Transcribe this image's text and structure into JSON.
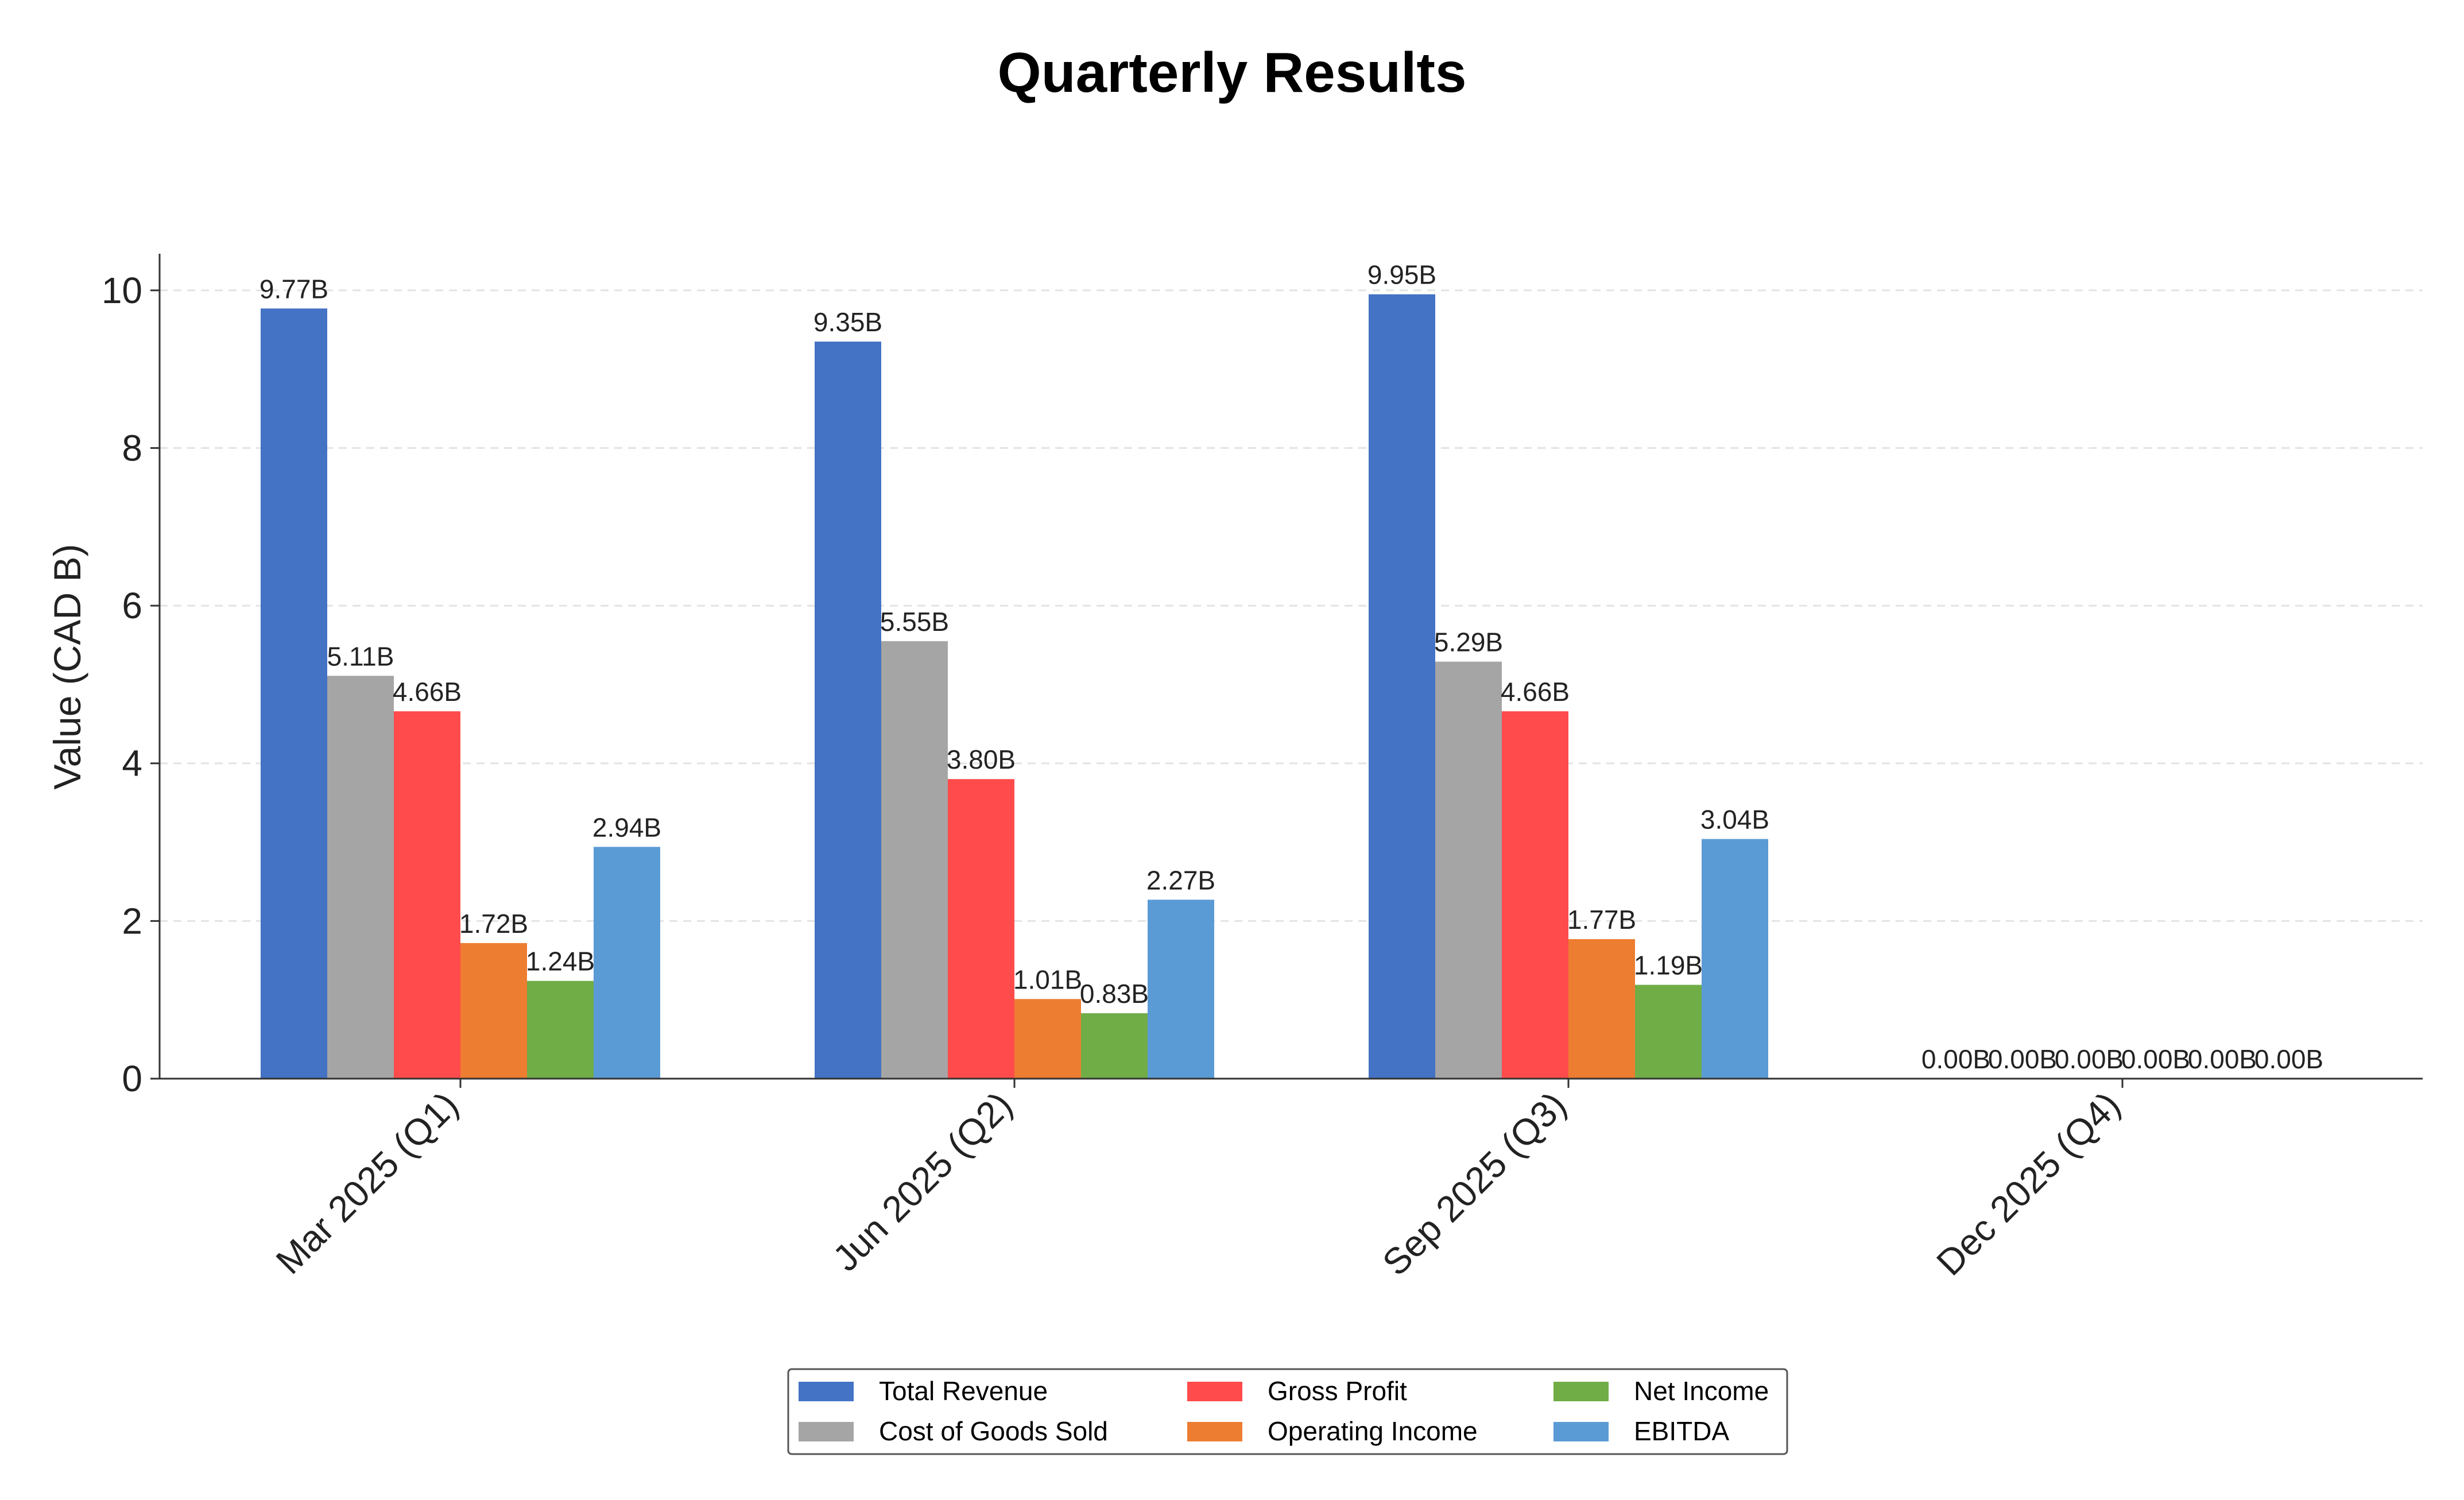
{
  "chart_data": {
    "type": "bar",
    "title": "Quarterly Results",
    "xlabel": "",
    "ylabel": "Value (CAD B)",
    "ylim": [
      0,
      10.45
    ],
    "yticks": [
      0,
      2,
      4,
      6,
      8,
      10
    ],
    "grid": "y-dashed",
    "legend_placement": "bottom-center",
    "value_suffix": "B",
    "categories": [
      "Mar 2025 (Q1)",
      "Jun 2025 (Q2)",
      "Sep 2025 (Q3)",
      "Dec 2025 (Q4)"
    ],
    "series": [
      {
        "name": "Total Revenue",
        "color": "#4472C4",
        "values": [
          9.77,
          9.35,
          9.95,
          0.0
        ]
      },
      {
        "name": "Cost of Goods Sold",
        "color": "#A5A5A5",
        "values": [
          5.11,
          5.55,
          5.29,
          0.0
        ]
      },
      {
        "name": "Gross Profit",
        "color": "#FF4B4B",
        "values": [
          4.66,
          3.8,
          4.66,
          0.0
        ]
      },
      {
        "name": "Operating Income",
        "color": "#ED7D31",
        "values": [
          1.72,
          1.01,
          1.77,
          0.0
        ]
      },
      {
        "name": "Net Income",
        "color": "#70AD47",
        "values": [
          1.24,
          0.83,
          1.19,
          0.0
        ]
      },
      {
        "name": "EBITDA",
        "color": "#5B9BD5",
        "values": [
          2.94,
          2.27,
          3.04,
          0.0
        ]
      }
    ]
  }
}
